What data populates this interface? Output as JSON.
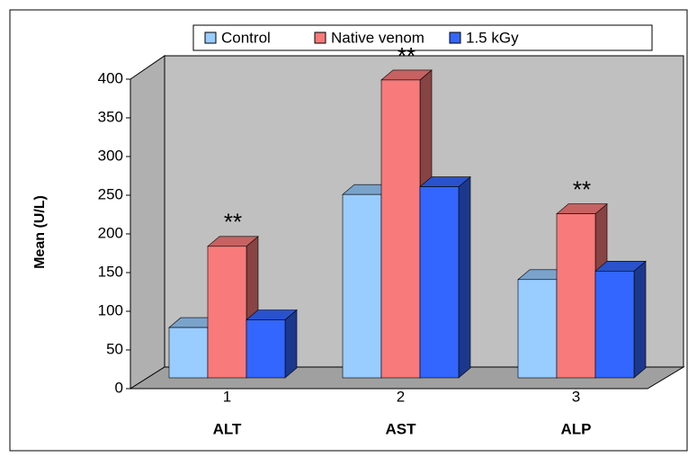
{
  "chart_data": {
    "type": "bar3d",
    "y_label": "Mean (U/L)",
    "categories": [
      "1",
      "2",
      "3"
    ],
    "group_labels": [
      "ALT",
      "AST",
      "ALP"
    ],
    "series": [
      {
        "name": "Control",
        "color": "#99ccff",
        "values": [
          65,
          237,
          127
        ]
      },
      {
        "name": "Native venom",
        "color": "#f87a7a",
        "values": [
          170,
          385,
          212
        ]
      },
      {
        "name": "1.5 kGy",
        "color": "#3366ff",
        "values": [
          75,
          247,
          138
        ]
      }
    ],
    "significance": [
      "**",
      "**",
      "**"
    ],
    "ylim": [
      0,
      400
    ],
    "yticks": [
      0,
      50,
      100,
      150,
      200,
      250,
      300,
      350,
      400
    ]
  }
}
